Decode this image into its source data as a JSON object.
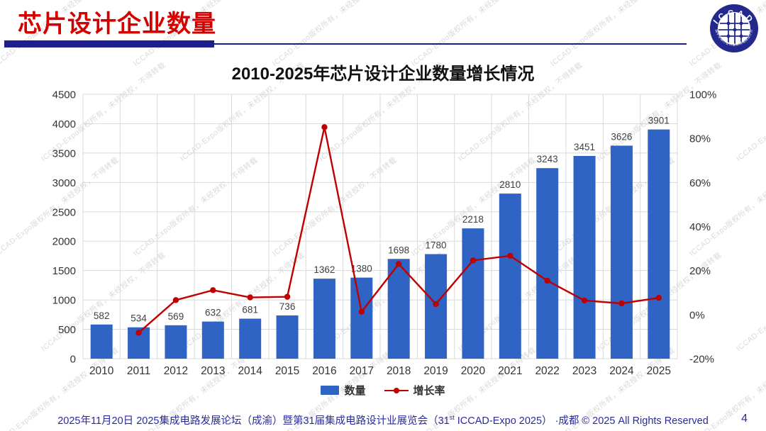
{
  "header": {
    "title": "芯片设计企业数量"
  },
  "logo": {
    "arc_text_top": "ICCAD",
    "arc_text_bottom": "中国半导体行业协会集成电路设计分会",
    "ring_color": "#23288D"
  },
  "watermark": {
    "text": "ICCAD-Expo版权所有，未经授权，不得转载"
  },
  "chart_data": {
    "type": "bar+line combo",
    "title": "2010-2025年芯片设计企业数量增长情况",
    "categories": [
      "2010",
      "2011",
      "2012",
      "2013",
      "2014",
      "2015",
      "2016",
      "2017",
      "2018",
      "2019",
      "2020",
      "2021",
      "2022",
      "2023",
      "2024",
      "2025"
    ],
    "series": [
      {
        "name": "数量",
        "chart_type": "bar",
        "axis": "left",
        "color": "#2F63C4",
        "values": [
          582,
          534,
          569,
          632,
          681,
          736,
          1362,
          1380,
          1698,
          1780,
          2218,
          2810,
          3243,
          3451,
          3626,
          3901
        ]
      },
      {
        "name": "增长率",
        "chart_type": "line",
        "axis": "right",
        "color": "#C00000",
        "values_pct": [
          null,
          -8.2,
          6.6,
          11.1,
          7.8,
          8.1,
          85.1,
          1.3,
          23.0,
          4.8,
          24.6,
          26.7,
          15.4,
          6.4,
          5.1,
          7.6
        ]
      }
    ],
    "bar_labels": [
      "582",
      "534",
      "569",
      "632",
      "681",
      "736",
      "1362",
      "1380",
      "1698",
      "1780",
      "2218",
      "2810",
      "3243",
      "3451",
      "3626",
      "3901"
    ],
    "left_axis": {
      "min": 0,
      "max": 4500,
      "step": 500,
      "tick_labels": [
        "0",
        "500",
        "1000",
        "1500",
        "2000",
        "2500",
        "3000",
        "3500",
        "4000",
        "4500"
      ]
    },
    "right_axis": {
      "min": -20,
      "max": 100,
      "step": 20,
      "tick_labels": [
        "-20%",
        "0%",
        "20%",
        "40%",
        "60%",
        "80%",
        "100%"
      ]
    },
    "grid": {
      "horizontal": true,
      "vertical": true,
      "color": "#D9D9D9"
    },
    "legend": {
      "position": "bottom",
      "items": [
        "数量",
        "增长率"
      ]
    },
    "label_color": "#404040",
    "tick_color": "#333333"
  },
  "footer": {
    "text_part1": "2025年11月20日 2025集成电路发展论坛（成渝）暨第31届集成电路设计业展览会（31",
    "sup": "st",
    "text_part2": " ICCAD-Expo 2025） ·成都 © 2025 All Rights Reserved",
    "page_number": "4"
  },
  "colors": {
    "header_red": "#D40000",
    "rule_navy": "#1E1E8C",
    "footer_navy": "#2A2A9E",
    "bar_blue": "#2F63C4",
    "line_red": "#C00000",
    "grid_gray": "#D9D9D9"
  }
}
